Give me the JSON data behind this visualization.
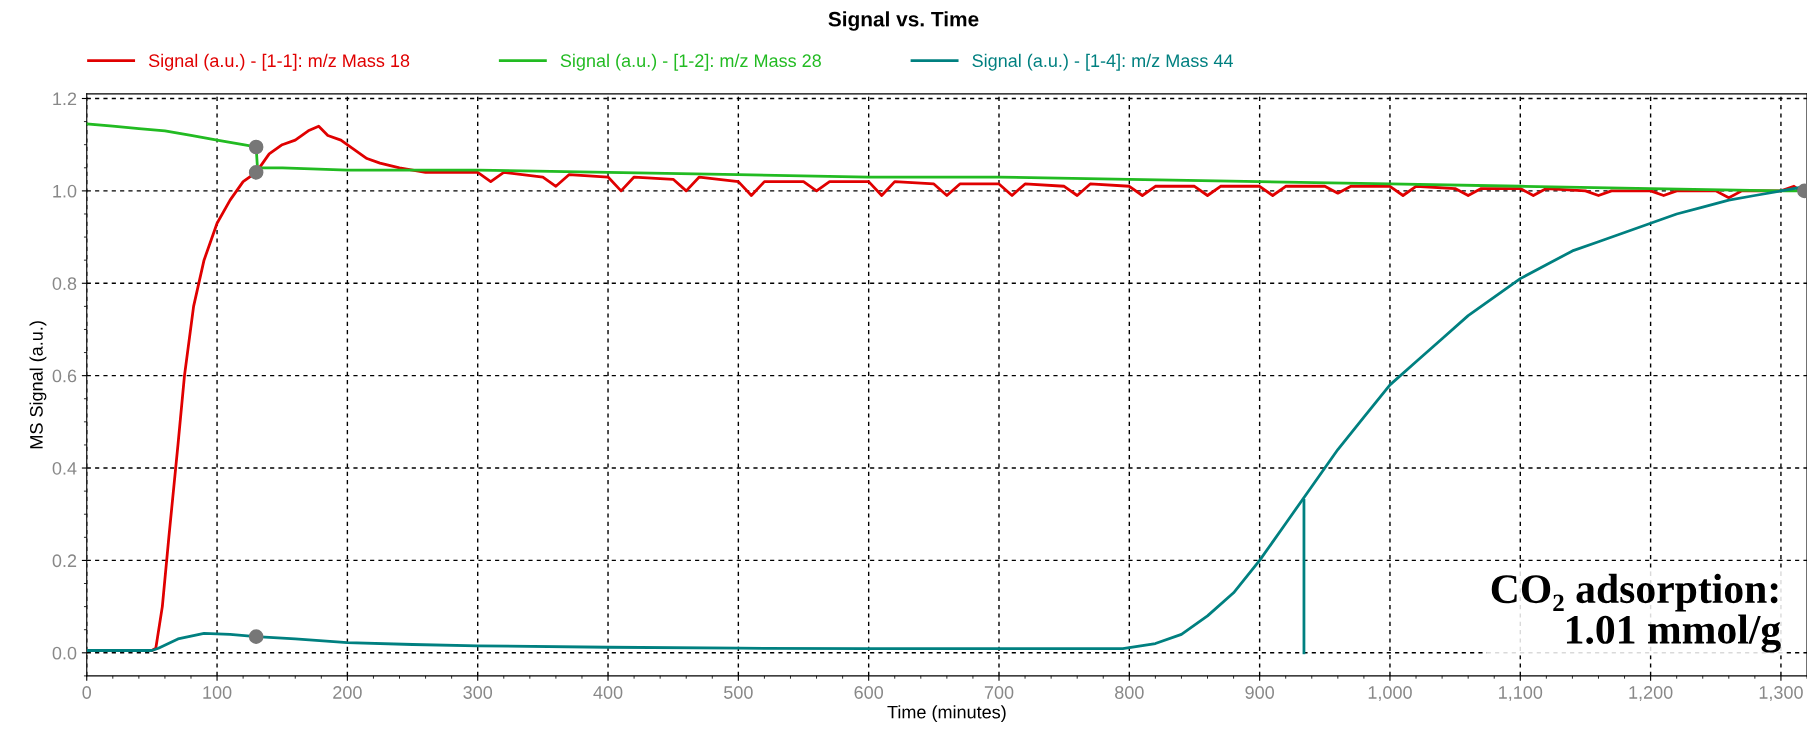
{
  "chart_data": {
    "type": "line",
    "title": "Signal vs. Time",
    "xlabel": "Time (minutes)",
    "ylabel": "MS Signal (a.u.)",
    "xlim": [
      0,
      1320
    ],
    "ylim": [
      -0.05,
      1.21
    ],
    "xticks": [
      0,
      100,
      200,
      300,
      400,
      500,
      600,
      700,
      800,
      900,
      {
        "value": 1000,
        "label": "1,000"
      },
      {
        "value": 1100,
        "label": "1,100"
      },
      {
        "value": 1200,
        "label": "1,200"
      },
      {
        "value": 1300,
        "label": "1,300"
      }
    ],
    "yticks": [
      {
        "value": 0,
        "label": "0.0"
      },
      0.2,
      0.4,
      0.6,
      0.8,
      {
        "value": 1,
        "label": "1.0"
      },
      1.2
    ],
    "grid": true,
    "legend": "top",
    "line_style": "solid",
    "marker": "none",
    "annotations": [
      "CO₂ adsorption:\n1.01 mmol/g"
    ],
    "series": [
      {
        "name": "Signal (a.u.) - [1-1]: m/z Mass 18",
        "color": "#e00000",
        "x": [
          0,
          50,
          53,
          58,
          63,
          70,
          75,
          82,
          90,
          100,
          110,
          120,
          130,
          135,
          140,
          150,
          160,
          170,
          178,
          185,
          195,
          205,
          215,
          225,
          240,
          260,
          280,
          300,
          310,
          320,
          350,
          360,
          370,
          400,
          410,
          420,
          450,
          460,
          470,
          500,
          510,
          520,
          550,
          560,
          570,
          600,
          610,
          620,
          650,
          660,
          670,
          700,
          710,
          720,
          750,
          760,
          770,
          800,
          810,
          820,
          850,
          860,
          870,
          900,
          910,
          920,
          950,
          960,
          970,
          1000,
          1010,
          1020,
          1050,
          1060,
          1070,
          1100,
          1110,
          1120,
          1150,
          1160,
          1170,
          1200,
          1210,
          1220,
          1250,
          1260,
          1270,
          1300,
          1310,
          1320
        ],
        "values": [
          0.005,
          0.005,
          0.01,
          0.1,
          0.25,
          0.45,
          0.6,
          0.75,
          0.85,
          0.93,
          0.98,
          1.02,
          1.04,
          1.06,
          1.08,
          1.1,
          1.11,
          1.13,
          1.14,
          1.12,
          1.11,
          1.09,
          1.07,
          1.06,
          1.05,
          1.04,
          1.04,
          1.04,
          1.02,
          1.04,
          1.03,
          1.01,
          1.035,
          1.03,
          1.0,
          1.03,
          1.025,
          1.0,
          1.03,
          1.02,
          0.99,
          1.02,
          1.02,
          1.0,
          1.02,
          1.02,
          0.99,
          1.02,
          1.015,
          0.99,
          1.015,
          1.015,
          0.99,
          1.015,
          1.01,
          0.99,
          1.015,
          1.01,
          0.99,
          1.01,
          1.01,
          0.99,
          1.01,
          1.01,
          0.99,
          1.01,
          1.01,
          0.995,
          1.01,
          1.01,
          0.99,
          1.01,
          1.005,
          0.99,
          1.005,
          1.005,
          0.99,
          1.005,
          1.0,
          0.99,
          1.0,
          1.0,
          0.99,
          1.0,
          1.0,
          0.985,
          1.0,
          1.0,
          1.01,
          0.99
        ]
      },
      {
        "name": "Signal (a.u.) - [1-2]: m/z Mass 28",
        "color": "#22bb22",
        "x": [
          0,
          20,
          40,
          60,
          80,
          100,
          120,
          130,
          131,
          150,
          200,
          300,
          400,
          500,
          600,
          700,
          800,
          900,
          1000,
          1100,
          1200,
          1300,
          1320
        ],
        "values": [
          1.145,
          1.14,
          1.135,
          1.13,
          1.12,
          1.11,
          1.1,
          1.095,
          1.05,
          1.05,
          1.045,
          1.045,
          1.04,
          1.035,
          1.03,
          1.03,
          1.025,
          1.02,
          1.015,
          1.01,
          1.005,
          1.0,
          1.0
        ]
      },
      {
        "name": "Signal (a.u.) - [1-4]: m/z Mass 44",
        "color": "#008080",
        "x": [
          0,
          50,
          55,
          70,
          90,
          110,
          130,
          160,
          200,
          250,
          300,
          400,
          500,
          600,
          700,
          795,
          820,
          840,
          860,
          880,
          900,
          920,
          940,
          960,
          980,
          1000,
          1020,
          1040,
          1060,
          1080,
          1100,
          1120,
          1140,
          1160,
          1180,
          1200,
          1220,
          1240,
          1260,
          1280,
          1300,
          1320
        ],
        "values": [
          0.005,
          0.005,
          0.01,
          0.03,
          0.042,
          0.04,
          0.035,
          0.03,
          0.022,
          0.018,
          0.015,
          0.012,
          0.01,
          0.009,
          0.009,
          0.009,
          0.02,
          0.04,
          0.08,
          0.13,
          0.2,
          0.28,
          0.36,
          0.44,
          0.51,
          0.58,
          0.63,
          0.68,
          0.73,
          0.77,
          0.81,
          0.84,
          0.87,
          0.89,
          0.91,
          0.93,
          0.95,
          0.965,
          0.98,
          0.99,
          1.0,
          1.01
        ]
      },
      {
        "color": "#008080",
        "x": [
          934,
          934
        ],
        "values": [
          0.0,
          0.33
        ]
      },
      {
        "type": "scatter",
        "marker": "circle",
        "color": "#777777",
        "x": [
          130,
          130,
          130,
          1318
        ],
        "values": [
          1.095,
          1.04,
          0.035,
          1.0
        ]
      }
    ]
  }
}
